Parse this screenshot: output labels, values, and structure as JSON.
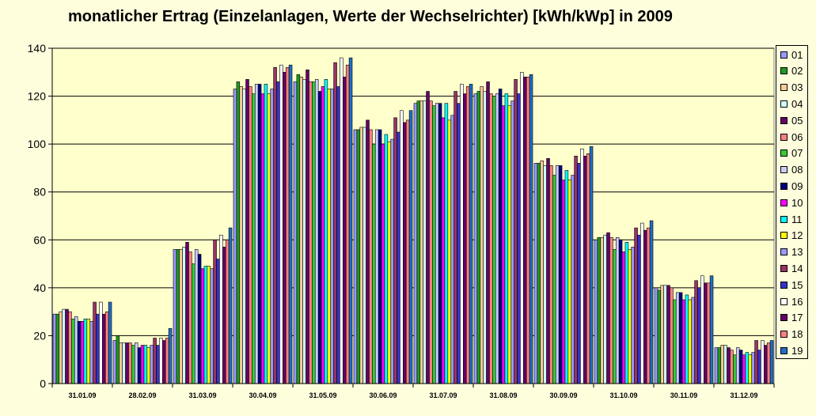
{
  "chart_data": {
    "type": "bar",
    "title": "monatlicher Ertrag (Einzelanlagen, Werte der Wechselrichter) [kWh/kWp] in 2009",
    "xlabel": "",
    "ylabel": "",
    "ylim": [
      0,
      140
    ],
    "yticks": [
      0,
      20,
      40,
      60,
      80,
      100,
      120,
      140
    ],
    "grid": "horizontal",
    "legend_position": "right",
    "categories": [
      "31.01.09",
      "28.02.09",
      "31.03.09",
      "30.04.09",
      "31.05.09",
      "30.06.09",
      "31.07.09",
      "31.08.09",
      "30.09.09",
      "31.10.09",
      "30.11.09",
      "31.12.09"
    ],
    "series": [
      {
        "name": "01",
        "color": "#9999ff",
        "values": [
          29,
          18,
          56,
          123,
          126,
          106,
          117,
          121,
          92,
          60,
          40,
          15
        ]
      },
      {
        "name": "02",
        "color": "#1e9b1e",
        "values": [
          29,
          20,
          56,
          126,
          129,
          106,
          118,
          122,
          92,
          61,
          39,
          15
        ]
      },
      {
        "name": "03",
        "color": "#ffcc99",
        "values": [
          30,
          17,
          56,
          124,
          128,
          107,
          118,
          124,
          93,
          61,
          41,
          16
        ]
      },
      {
        "name": "04",
        "color": "#ccffff",
        "values": [
          31,
          17,
          57,
          123,
          127,
          107,
          118,
          122,
          91,
          62,
          41,
          16
        ]
      },
      {
        "name": "05",
        "color": "#660066",
        "values": [
          31,
          17,
          59,
          127,
          131,
          110,
          122,
          126,
          94,
          63,
          41,
          15
        ]
      },
      {
        "name": "06",
        "color": "#ff8080",
        "values": [
          30,
          17,
          55,
          124,
          126,
          106,
          118,
          121,
          91,
          61,
          40,
          14
        ]
      },
      {
        "name": "07",
        "color": "#33cc33",
        "values": [
          27,
          16,
          50,
          121,
          126,
          100,
          116,
          120,
          87,
          56,
          35,
          12
        ]
      },
      {
        "name": "08",
        "color": "#ccccff",
        "values": [
          28,
          17,
          56,
          125,
          127,
          106,
          117,
          121,
          91,
          61,
          38,
          15
        ]
      },
      {
        "name": "09",
        "color": "#000080",
        "values": [
          26,
          15,
          54,
          125,
          122,
          106,
          117,
          123,
          91,
          60,
          38,
          14
        ]
      },
      {
        "name": "10",
        "color": "#ff00ff",
        "values": [
          26,
          16,
          48,
          121,
          124,
          100,
          111,
          116,
          85,
          55,
          35,
          12
        ]
      },
      {
        "name": "11",
        "color": "#00ffff",
        "values": [
          27,
          16,
          49,
          125,
          127,
          104,
          117,
          121,
          89,
          59,
          37,
          13
        ]
      },
      {
        "name": "12",
        "color": "#ffff00",
        "values": [
          27,
          15,
          49,
          121,
          123,
          101,
          110,
          116,
          85,
          56,
          35,
          12
        ]
      },
      {
        "name": "13",
        "color": "#9999ff",
        "values": [
          26,
          16,
          48,
          123,
          123,
          102,
          112,
          118,
          87,
          57,
          36,
          13
        ]
      },
      {
        "name": "14",
        "color": "#993366",
        "values": [
          34,
          19,
          60,
          132,
          134,
          111,
          122,
          127,
          95,
          65,
          43,
          18
        ]
      },
      {
        "name": "15",
        "color": "#3333cc",
        "values": [
          29,
          16,
          52,
          126,
          124,
          105,
          117,
          121,
          92,
          62,
          40,
          14
        ]
      },
      {
        "name": "16",
        "color": "#ffffff",
        "values": [
          34,
          19,
          62,
          133,
          136,
          114,
          125,
          130,
          98,
          67,
          45,
          18
        ]
      },
      {
        "name": "17",
        "color": "#660066",
        "values": [
          29,
          18,
          57,
          130,
          128,
          109,
          121,
          128,
          95,
          64,
          42,
          16
        ]
      },
      {
        "name": "18",
        "color": "#ff8080",
        "values": [
          30,
          19,
          60,
          132,
          133,
          110,
          124,
          128,
          96,
          65,
          42,
          17
        ]
      },
      {
        "name": "19",
        "color": "#1f6fc5",
        "values": [
          34,
          23,
          65,
          133,
          136,
          114,
          125,
          129,
          99,
          68,
          45,
          18
        ]
      }
    ]
  }
}
